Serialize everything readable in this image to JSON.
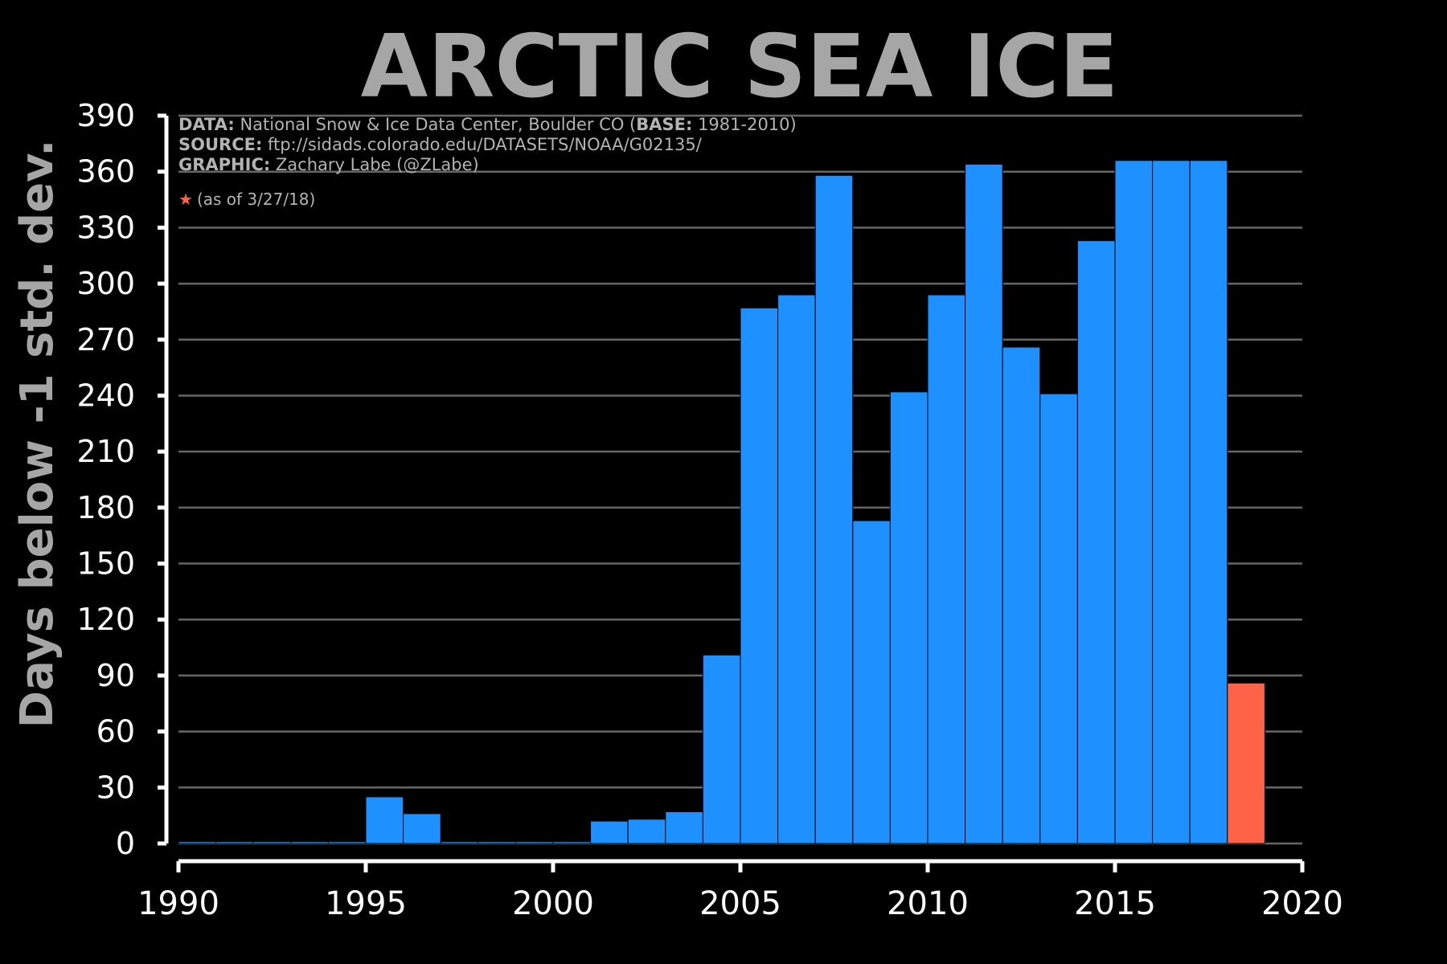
{
  "title": "ARCTIC SEA ICE",
  "info": {
    "data_label": "DATA:",
    "data_text": " National Snow & Ice Data Center, Boulder CO (",
    "base_label": "BASE:",
    "base_text": " 1981-2010)",
    "source_label": "SOURCE:",
    "source_text": " ftp://sidads.colorado.edu/DATASETS/NOAA/G02135/",
    "graphic_label": "GRAPHIC:",
    "graphic_text": " Zachary Labe (@ZLabe)",
    "star_symbol": "★",
    "star_note": "(as of 3/27/18)"
  },
  "colors": {
    "background": "#000000",
    "bar": "#1e90ff",
    "highlight_bar": "#ff6347",
    "title": "#a6a6a6",
    "grid": "#666666"
  },
  "chart_data": {
    "type": "bar",
    "ylabel": "Days below -1 std. dev.",
    "xlabel": "",
    "ylim": [
      0,
      390
    ],
    "xlim": [
      1990,
      2020
    ],
    "yticks": [
      0,
      30,
      60,
      90,
      120,
      150,
      180,
      210,
      240,
      270,
      300,
      330,
      360,
      390
    ],
    "xticks": [
      1990,
      1995,
      2000,
      2005,
      2010,
      2015,
      2020
    ],
    "grid": "horizontal",
    "highlight_year": 2018,
    "years": [
      1990,
      1991,
      1992,
      1993,
      1994,
      1995,
      1996,
      1997,
      1998,
      1999,
      2000,
      2001,
      2002,
      2003,
      2004,
      2005,
      2006,
      2007,
      2008,
      2009,
      2010,
      2011,
      2012,
      2013,
      2014,
      2015,
      2016,
      2017,
      2018
    ],
    "values": [
      1,
      1,
      1,
      1,
      1,
      25,
      16,
      1,
      1,
      1,
      1,
      12,
      13,
      17,
      101,
      287,
      294,
      358,
      173,
      242,
      294,
      364,
      266,
      241,
      323,
      366,
      366,
      366,
      86
    ]
  }
}
